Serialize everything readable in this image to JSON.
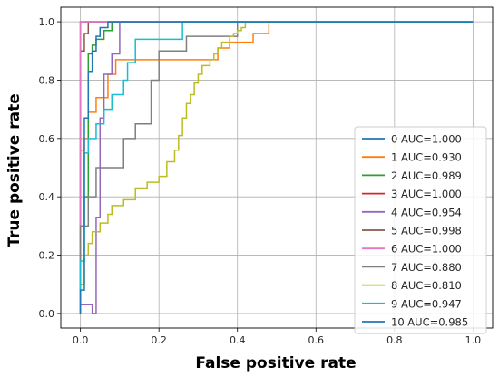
{
  "chart_data": {
    "type": "line",
    "title": "",
    "xlabel": "False positive rate",
    "ylabel": "True positive rate",
    "xlim": [
      -0.05,
      1.05
    ],
    "ylim": [
      -0.05,
      1.05
    ],
    "xticks": [
      "0.0",
      "0.2",
      "0.4",
      "0.6",
      "0.8",
      "1.0"
    ],
    "yticks": [
      "0.0",
      "0.2",
      "0.4",
      "0.6",
      "0.8",
      "1.0"
    ],
    "grid": true,
    "legend_position": "lower-right",
    "series": [
      {
        "name": "0 AUC=1.000",
        "color": "#1f77b4",
        "x": [
          0,
          0,
          1.0
        ],
        "y": [
          0,
          1.0,
          1.0
        ]
      },
      {
        "name": "1 AUC=0.930",
        "color": "#ff7f0e",
        "x": [
          0,
          0,
          0.01,
          0.01,
          0.02,
          0.02,
          0.04,
          0.04,
          0.07,
          0.07,
          0.09,
          0.09,
          0.35,
          0.35,
          0.38,
          0.38,
          0.44,
          0.44,
          0.48,
          0.48,
          1.0
        ],
        "y": [
          0,
          0.56,
          0.56,
          0.6,
          0.6,
          0.69,
          0.69,
          0.74,
          0.74,
          0.82,
          0.82,
          0.87,
          0.87,
          0.91,
          0.91,
          0.93,
          0.93,
          0.96,
          0.96,
          1.0,
          1.0
        ]
      },
      {
        "name": "2 AUC=0.989",
        "color": "#2ca02c",
        "x": [
          0,
          0,
          0.01,
          0.01,
          0.02,
          0.02,
          0.03,
          0.03,
          0.04,
          0.04,
          0.06,
          0.06,
          0.08,
          0.08,
          1.0
        ],
        "y": [
          0,
          0.3,
          0.3,
          0.4,
          0.4,
          0.89,
          0.89,
          0.92,
          0.92,
          0.94,
          0.94,
          0.97,
          0.97,
          1.0,
          1.0
        ]
      },
      {
        "name": "3 AUC=1.000",
        "color": "#d62728",
        "x": [
          0,
          0,
          1.0
        ],
        "y": [
          0,
          1.0,
          1.0
        ]
      },
      {
        "name": "4 AUC=0.954",
        "color": "#9467bd",
        "x": [
          0,
          0,
          0.03,
          0.03,
          0.04,
          0.04,
          0.05,
          0.05,
          0.06,
          0.06,
          0.08,
          0.08,
          0.1,
          0.1,
          1.0
        ],
        "y": [
          0,
          0.03,
          0.03,
          0.0,
          0.0,
          0.33,
          0.33,
          0.67,
          0.67,
          0.82,
          0.82,
          0.89,
          0.89,
          1.0,
          1.0
        ]
      },
      {
        "name": "5 AUC=0.998",
        "color": "#8c564b",
        "x": [
          0,
          0,
          0.01,
          0.01,
          0.02,
          0.02,
          1.0
        ],
        "y": [
          0,
          0.9,
          0.9,
          0.96,
          0.96,
          1.0,
          1.0
        ]
      },
      {
        "name": "6 AUC=1.000",
        "color": "#e377c2",
        "x": [
          0,
          0,
          1.0
        ],
        "y": [
          0,
          1.0,
          1.0
        ]
      },
      {
        "name": "7 AUC=0.880",
        "color": "#7f7f7f",
        "x": [
          0,
          0,
          0.01,
          0.01,
          0.02,
          0.02,
          0.04,
          0.04,
          0.11,
          0.11,
          0.14,
          0.14,
          0.18,
          0.18,
          0.2,
          0.2,
          0.27,
          0.27,
          0.4,
          0.4,
          1.0
        ],
        "y": [
          0,
          0.3,
          0.3,
          0.3,
          0.3,
          0.4,
          0.4,
          0.5,
          0.5,
          0.6,
          0.6,
          0.65,
          0.65,
          0.8,
          0.8,
          0.9,
          0.9,
          0.95,
          0.95,
          1.0,
          1.0
        ]
      },
      {
        "name": "8 AUC=0.810",
        "color": "#bcbd22",
        "x": [
          0,
          0,
          0.01,
          0.01,
          0.02,
          0.02,
          0.03,
          0.03,
          0.05,
          0.05,
          0.07,
          0.07,
          0.08,
          0.08,
          0.11,
          0.11,
          0.14,
          0.14,
          0.17,
          0.17,
          0.2,
          0.2,
          0.22,
          0.22,
          0.24,
          0.24,
          0.25,
          0.25,
          0.26,
          0.26,
          0.27,
          0.27,
          0.28,
          0.28,
          0.29,
          0.29,
          0.3,
          0.3,
          0.31,
          0.31,
          0.33,
          0.33,
          0.34,
          0.34,
          0.35,
          0.35,
          0.36,
          0.36,
          0.38,
          0.38,
          0.39,
          0.39,
          0.4,
          0.4,
          0.41,
          0.41,
          0.42,
          0.42,
          1.0
        ],
        "y": [
          0,
          0.1,
          0.1,
          0.2,
          0.2,
          0.24,
          0.24,
          0.28,
          0.28,
          0.31,
          0.31,
          0.34,
          0.34,
          0.37,
          0.37,
          0.39,
          0.39,
          0.43,
          0.43,
          0.45,
          0.45,
          0.47,
          0.47,
          0.52,
          0.52,
          0.56,
          0.56,
          0.61,
          0.61,
          0.67,
          0.67,
          0.72,
          0.72,
          0.75,
          0.75,
          0.79,
          0.79,
          0.82,
          0.82,
          0.85,
          0.85,
          0.87,
          0.87,
          0.89,
          0.89,
          0.91,
          0.91,
          0.93,
          0.93,
          0.95,
          0.95,
          0.96,
          0.96,
          0.97,
          0.97,
          0.98,
          0.98,
          1.0,
          1.0
        ]
      },
      {
        "name": "9 AUC=0.947",
        "color": "#17becf",
        "x": [
          0,
          0,
          0.01,
          0.01,
          0.02,
          0.02,
          0.04,
          0.04,
          0.06,
          0.06,
          0.08,
          0.08,
          0.11,
          0.11,
          0.12,
          0.12,
          0.14,
          0.14,
          0.2,
          0.2,
          0.26,
          0.26,
          1.0
        ],
        "y": [
          0,
          0.18,
          0.18,
          0.55,
          0.55,
          0.6,
          0.6,
          0.65,
          0.65,
          0.7,
          0.7,
          0.75,
          0.75,
          0.8,
          0.8,
          0.86,
          0.86,
          0.94,
          0.94,
          0.94,
          0.94,
          1.0,
          1.0
        ]
      },
      {
        "name": "10 AUC=0.985",
        "color": "#1f77b4",
        "x": [
          0,
          0,
          0.01,
          0.01,
          0.02,
          0.02,
          0.03,
          0.03,
          0.04,
          0.04,
          0.05,
          0.05,
          0.07,
          0.07,
          1.0
        ],
        "y": [
          0,
          0.08,
          0.08,
          0.67,
          0.67,
          0.83,
          0.83,
          0.9,
          0.9,
          0.95,
          0.95,
          0.98,
          0.98,
          1.0,
          1.0
        ]
      }
    ]
  }
}
